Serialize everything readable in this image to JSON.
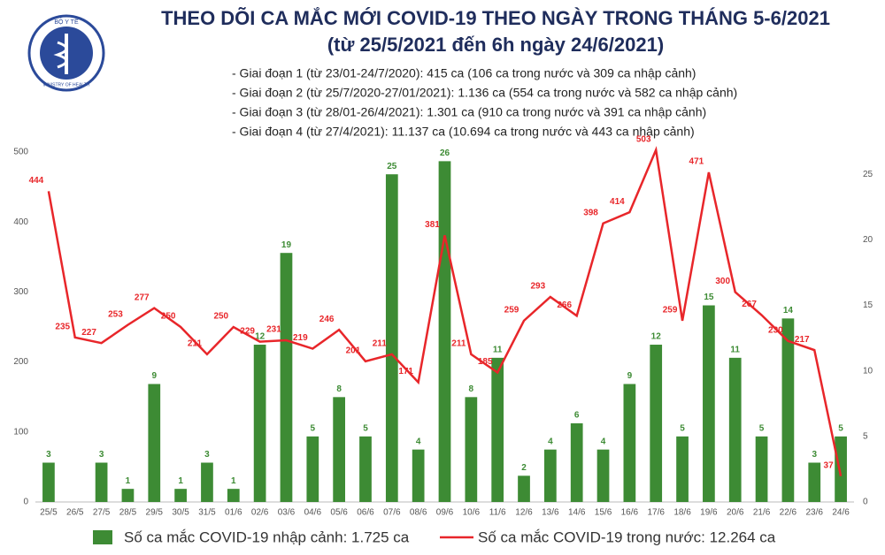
{
  "header": {
    "logo_top": "BỘ Y TẾ",
    "logo_bottom": "MINISTRY OF HEALTH",
    "title": "THEO DÕI CA MẮC MỚI COVID-19 THEO NGÀY TRONG THÁNG 5-6/2021",
    "subtitle": "(từ 25/5/2021 đến 6h ngày 24/6/2021)",
    "notes": [
      "- Giai đoạn 1 (từ 23/01-24/7/2020): 415 ca (106 ca trong nước và 309 ca nhập cảnh)",
      "- Giai đoạn 2 (từ 25/7/2020-27/01/2021): 1.136 ca (554 ca trong nước và 582 ca nhập cảnh)",
      "- Giai đoạn 3 (từ 28/01-26/4/2021): 1.301 ca (910 ca trong nước và 391 ca nhập cảnh)",
      "- Giai đoạn 4 (từ 27/4/2021): 11.137 ca (10.694 ca trong nước và 443 ca nhập cảnh)"
    ]
  },
  "chart_data": {
    "type": "bar-line",
    "categories": [
      "25/5",
      "26/5",
      "27/5",
      "28/5",
      "29/5",
      "30/5",
      "31/5",
      "01/6",
      "02/6",
      "03/6",
      "04/6",
      "05/6",
      "06/6",
      "07/6",
      "08/6",
      "09/6",
      "10/6",
      "11/6",
      "12/6",
      "13/6",
      "14/6",
      "15/6",
      "16/6",
      "17/6",
      "18/6",
      "19/6",
      "20/6",
      "21/6",
      "22/6",
      "23/6",
      "24/6"
    ],
    "series": [
      {
        "name": "Số ca mắc COVID-19 nhập cảnh: 1.725 ca",
        "type": "bar",
        "axis": "y2",
        "color": "#3d8b34",
        "values": [
          3,
          null,
          3,
          1,
          9,
          1,
          3,
          1,
          12,
          19,
          5,
          8,
          5,
          25,
          4,
          26,
          8,
          11,
          2,
          4,
          6,
          4,
          9,
          12,
          5,
          15,
          11,
          5,
          14,
          3,
          5
        ]
      },
      {
        "name": "Số ca mắc COVID-19 trong nước: 12.264 ca",
        "type": "line",
        "color": "#e8262a",
        "values": [
          444,
          235,
          227,
          253,
          277,
          250,
          211,
          250,
          229,
          231,
          219,
          246,
          201,
          211,
          171,
          381,
          211,
          185,
          259,
          293,
          266,
          398,
          414,
          503,
          259,
          471,
          300,
          267,
          230,
          217,
          37
        ]
      }
    ],
    "ylim": [
      0,
      500
    ],
    "yticks": [
      0,
      100,
      200,
      300,
      400,
      500
    ],
    "y2lim": [
      0,
      26.7
    ],
    "y2ticks": [
      0,
      5,
      10,
      15,
      20,
      25
    ]
  }
}
